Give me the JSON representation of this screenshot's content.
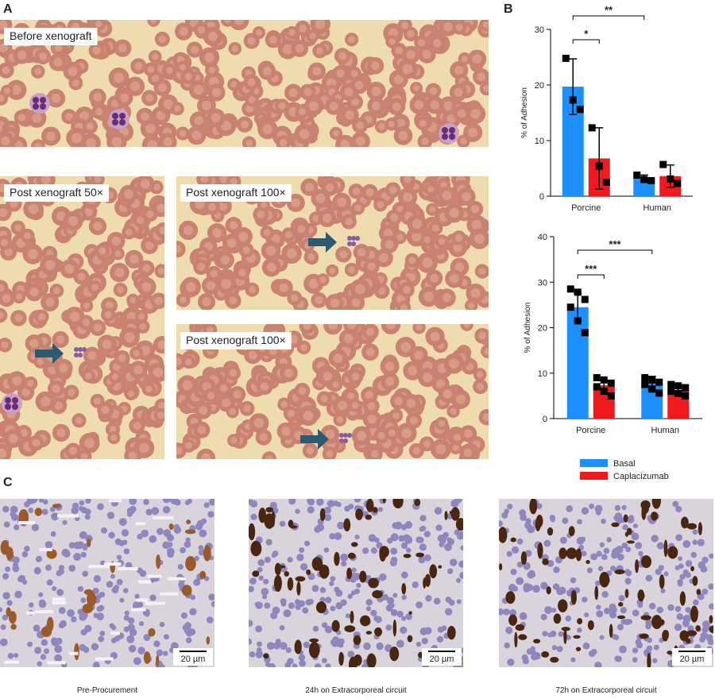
{
  "panels": [
    "A",
    "B",
    "C"
  ],
  "micrographs": [
    {
      "caption": "Before xenograft"
    },
    {
      "caption": "Post xenograft 50×"
    },
    {
      "caption": "Post xenograft 100×"
    },
    {
      "caption": "Post xenograft 100×"
    }
  ],
  "histology": [
    {
      "caption": "Pre-Procurement",
      "scale": "20 µm"
    },
    {
      "caption": "24h on Extracorporeal circuit",
      "scale": "20 µm"
    },
    {
      "caption": "72h on Extracorporeal circuit",
      "scale": "20 µm"
    }
  ],
  "chart_data": [
    {
      "type": "bar",
      "categories": [
        "Porcine",
        "Human"
      ],
      "y_label": "% of Adhesion",
      "ylim": [
        0,
        30
      ],
      "yticks": [
        0,
        10,
        20,
        30
      ],
      "annotations": [
        "*",
        "**"
      ],
      "series": [
        {
          "color": "#1e8fff",
          "values": [
            19.7,
            3.2
          ],
          "errors": [
            5,
            0.6
          ],
          "points": [
            [
              24.8,
              17.3,
              15.6
            ],
            [
              3.8,
              3.0,
              2.8
            ]
          ]
        },
        {
          "color": "#f0191e",
          "values": [
            6.8,
            3.6
          ],
          "errors": [
            5.5,
            2
          ],
          "points": [
            [
              12.3,
              5.4,
              2.5
            ],
            [
              5.7,
              3.1,
              2.3
            ]
          ]
        }
      ]
    },
    {
      "type": "bar",
      "categories": [
        "Porcine",
        "Human"
      ],
      "y_label": "% of Adhesion",
      "ylim": [
        0,
        40
      ],
      "yticks": [
        0,
        10,
        20,
        30,
        40
      ],
      "annotations": [
        "***",
        "***"
      ],
      "legend": "bottom",
      "series": [
        {
          "name": "Basal",
          "color": "#1e8fff",
          "values": [
            24.5,
            7.8
          ],
          "errors": [
            3,
            1.5
          ],
          "points": [
            [
              28.5,
              27.8,
              26.2,
              24.5,
              21.5,
              18.9
            ],
            [
              9,
              8.5,
              8,
              7.5,
              6.5,
              5.6
            ]
          ]
        },
        {
          "name": "Caplacizumab",
          "color": "#f0191e",
          "values": [
            7.3,
            6.2
          ],
          "errors": [
            1,
            1
          ],
          "points": [
            [
              9,
              8.5,
              7.8,
              7,
              6,
              5
            ],
            [
              7.5,
              7.2,
              6.8,
              6,
              5.5,
              5
            ]
          ]
        }
      ]
    }
  ]
}
